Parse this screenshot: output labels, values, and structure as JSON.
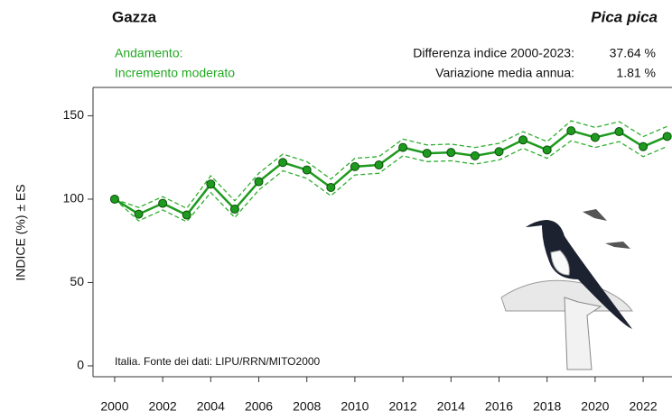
{
  "chart_data": {
    "type": "line",
    "title": "Gazza",
    "subtitle": "Pica pica",
    "trend_label": "Andamento:",
    "trend": "Incremento moderato",
    "stats": [
      {
        "label": "Differenza indice 2000-2023:",
        "value": "37.64 %"
      },
      {
        "label": "Variazione media annua:",
        "value": "1.81 %"
      }
    ],
    "y_label": "INDICE (%) ± ES",
    "source": "Italia. Fonte dei dati: LIPU/RRN/MITO2000",
    "x": [
      2000,
      2001,
      2002,
      2003,
      2004,
      2005,
      2006,
      2007,
      2008,
      2009,
      2010,
      2011,
      2012,
      2013,
      2014,
      2015,
      2016,
      2017,
      2018,
      2019,
      2020,
      2021,
      2022,
      2023
    ],
    "values": [
      100,
      91,
      97.5,
      90.5,
      109,
      94,
      110.5,
      122,
      117.5,
      107,
      119.5,
      120.5,
      131,
      127.5,
      128,
      126,
      128.5,
      135.5,
      129.5,
      141,
      137,
      140.5,
      131.5,
      137.64
    ],
    "errors": [
      0,
      4,
      4,
      4,
      5,
      5,
      5,
      5,
      5,
      5,
      5,
      5,
      5,
      5,
      5,
      5,
      5,
      5,
      5,
      6,
      6,
      6,
      6,
      6
    ],
    "color": "#1e9a1e",
    "band_color": "#2eae2e",
    "xlim": [
      1999.1,
      2023.2
    ],
    "xticks": [
      2000,
      2002,
      2004,
      2006,
      2008,
      2010,
      2012,
      2014,
      2016,
      2018,
      2020,
      2022
    ],
    "ylim": [
      -6.5,
      167
    ],
    "yticks": [
      0,
      50,
      100,
      150
    ]
  }
}
